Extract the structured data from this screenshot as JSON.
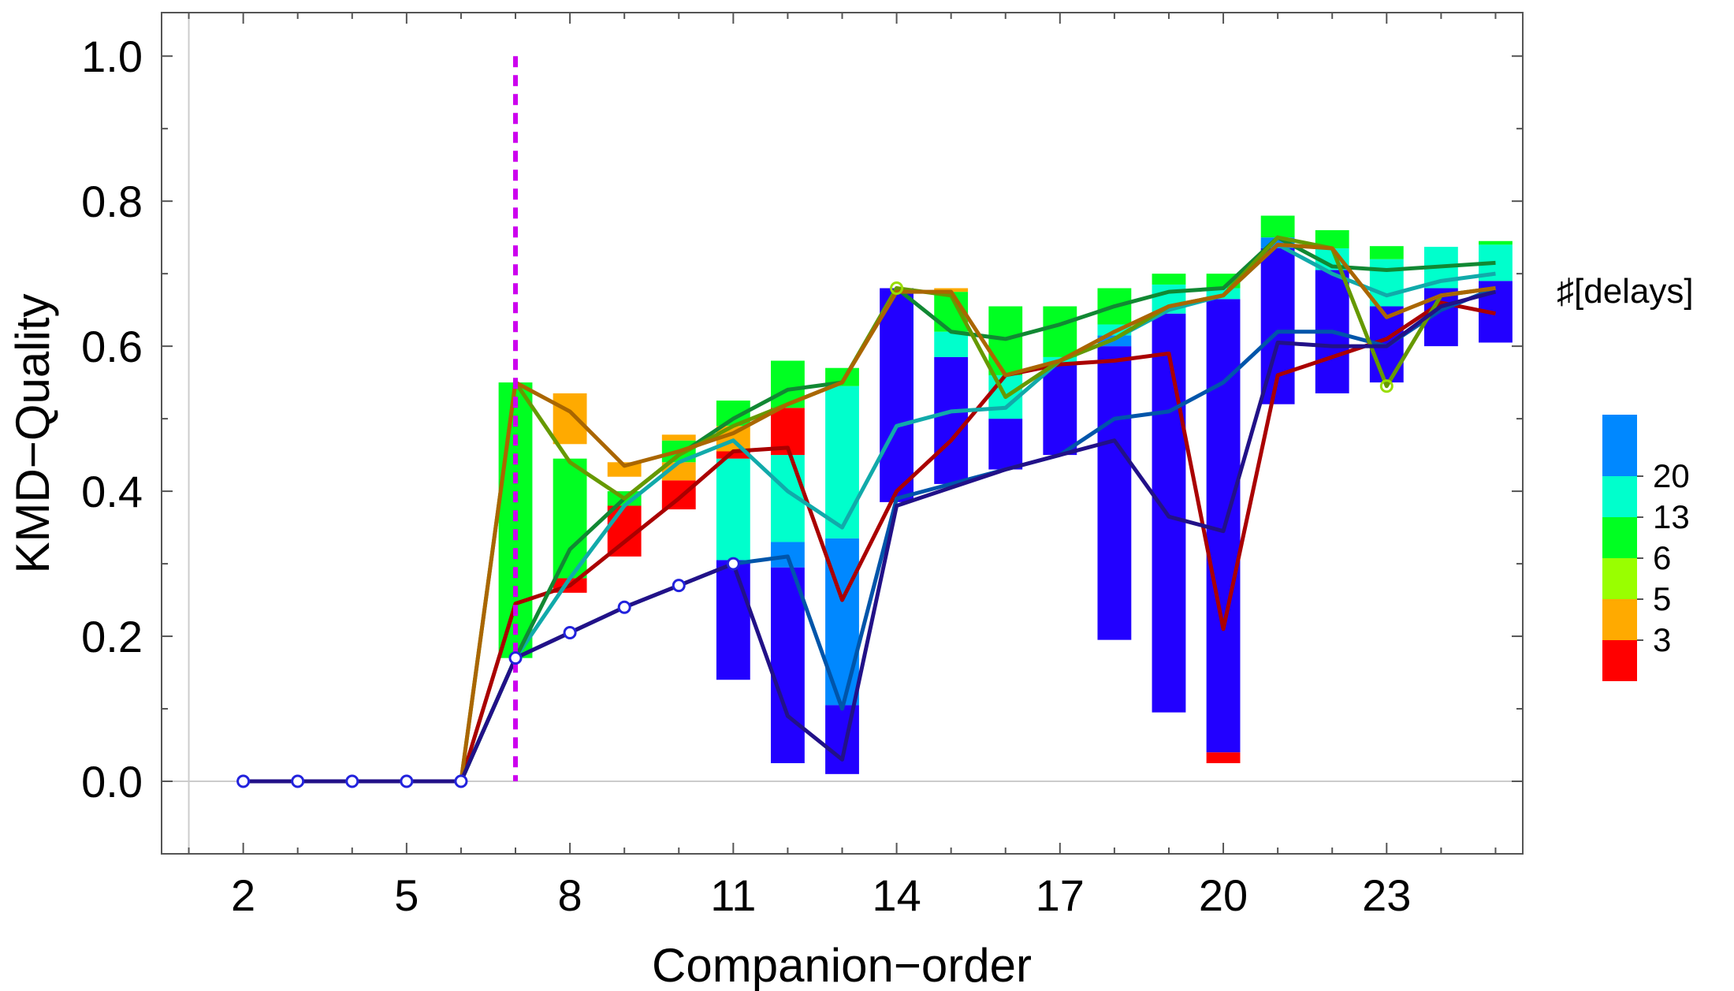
{
  "chart_data": {
    "type": "bar",
    "xlabel": "Companion−order",
    "ylabel": "KMD−Quality",
    "xlim": [
      0.5,
      25.5
    ],
    "ylim": [
      -0.1,
      1.06
    ],
    "x_ticks": [
      2,
      5,
      8,
      11,
      14,
      17,
      20,
      23
    ],
    "x_tick_labels": [
      "2",
      "5",
      "8",
      "11",
      "14",
      "17",
      "20",
      "23"
    ],
    "y_ticks": [
      0.0,
      0.2,
      0.4,
      0.6,
      0.8,
      1.0
    ],
    "y_tick_labels": [
      "0.0",
      "0.2",
      "0.4",
      "0.6",
      "0.8",
      "1.0"
    ],
    "threshold_x": 7,
    "threshold_color": "#cc00ee",
    "colorbar": {
      "title": "♯[delays]",
      "labels": [
        "3",
        "5",
        "6",
        "13",
        "20"
      ],
      "colors": [
        "#ff0000",
        "#ffaa00",
        "#99ff00",
        "#00ff22",
        "#00ffcc",
        "#0088ff"
      ]
    },
    "series": [
      {
        "color": "#aa0000",
        "x": [
          2,
          3,
          4,
          5,
          6,
          7,
          8,
          9,
          10,
          11,
          12,
          13,
          14,
          15,
          16,
          17,
          18,
          19,
          20,
          21,
          22,
          23,
          24,
          25
        ],
        "y": [
          0,
          0,
          0,
          0,
          0,
          0.245,
          0.27,
          0.33,
          0.39,
          0.455,
          0.46,
          0.25,
          0.4,
          0.47,
          0.56,
          0.575,
          0.58,
          0.59,
          0.21,
          0.56,
          0.585,
          0.61,
          0.66,
          0.645
        ]
      },
      {
        "color": "#0055aa",
        "x": [
          2,
          3,
          4,
          5,
          6,
          7,
          8,
          9,
          10,
          11,
          12,
          13,
          14,
          15,
          16,
          17,
          18,
          19,
          20,
          21,
          22,
          23,
          24,
          25
        ],
        "y": [
          0,
          0,
          0,
          0,
          0,
          0.17,
          0.205,
          0.24,
          0.27,
          0.3,
          0.31,
          0.1,
          0.39,
          0.41,
          0.43,
          0.45,
          0.5,
          0.51,
          0.55,
          0.62,
          0.62,
          0.6,
          0.65,
          0.68
        ]
      },
      {
        "color": "#11aaaa",
        "x": [
          2,
          3,
          4,
          5,
          6,
          7,
          8,
          9,
          10,
          11,
          12,
          13,
          14,
          15,
          16,
          17,
          18,
          19,
          20,
          21,
          22,
          23,
          24,
          25
        ],
        "y": [
          0,
          0,
          0,
          0,
          0,
          0.17,
          0.28,
          0.38,
          0.44,
          0.47,
          0.4,
          0.35,
          0.49,
          0.51,
          0.515,
          0.58,
          0.61,
          0.65,
          0.67,
          0.74,
          0.7,
          0.67,
          0.69,
          0.7
        ]
      },
      {
        "color": "#118833",
        "x": [
          2,
          3,
          4,
          5,
          6,
          7,
          8,
          9,
          10,
          11,
          12,
          13,
          14,
          15,
          16,
          17,
          18,
          19,
          20,
          21,
          22,
          23,
          24,
          25
        ],
        "y": [
          0,
          0,
          0,
          0,
          0,
          0.17,
          0.32,
          0.39,
          0.45,
          0.5,
          0.54,
          0.55,
          0.68,
          0.62,
          0.61,
          0.63,
          0.655,
          0.675,
          0.68,
          0.75,
          0.71,
          0.705,
          0.71,
          0.715
        ]
      },
      {
        "color": "#669900",
        "x": [
          2,
          3,
          4,
          5,
          6,
          7,
          8,
          9,
          10,
          11,
          12,
          13,
          14,
          15,
          16,
          17,
          18,
          19,
          20,
          21,
          22,
          23,
          24,
          25
        ],
        "y": [
          0,
          0,
          0,
          0,
          0,
          0.55,
          0.44,
          0.39,
          0.45,
          0.49,
          0.52,
          0.55,
          0.68,
          0.67,
          0.53,
          0.58,
          0.61,
          0.655,
          0.67,
          0.75,
          0.735,
          0.545,
          0.67,
          0.68
        ]
      },
      {
        "color": "#aa6600",
        "x": [
          2,
          3,
          4,
          5,
          6,
          7,
          8,
          9,
          10,
          11,
          12,
          13,
          14,
          15,
          16,
          17,
          18,
          19,
          20,
          21,
          22,
          23,
          24,
          25
        ],
        "y": [
          0,
          0,
          0,
          0,
          0,
          0.55,
          0.51,
          0.435,
          0.455,
          0.48,
          0.52,
          0.55,
          0.675,
          0.675,
          0.56,
          0.58,
          0.62,
          0.655,
          0.67,
          0.74,
          0.735,
          0.64,
          0.67,
          0.68
        ]
      },
      {
        "color": "#221188",
        "x": [
          2,
          3,
          4,
          5,
          6,
          7,
          8,
          9,
          10,
          11,
          12,
          13,
          14,
          15,
          16,
          17,
          18,
          19,
          20,
          21,
          22,
          23,
          24,
          25
        ],
        "y": [
          0,
          0,
          0,
          0,
          0,
          0.17,
          0.205,
          0.24,
          0.27,
          0.3,
          0.09,
          0.03,
          0.38,
          0.405,
          0.43,
          0.45,
          0.47,
          0.365,
          0.345,
          0.605,
          0.6,
          0.6,
          0.655,
          0.675
        ]
      }
    ],
    "marker_points": {
      "color": "#2222dd",
      "x": [
        2,
        3,
        4,
        5,
        6,
        7,
        8,
        9,
        10,
        11
      ],
      "y": [
        0,
        0,
        0,
        0,
        0,
        0.17,
        0.205,
        0.24,
        0.27,
        0.3
      ]
    },
    "extra_markers": [
      {
        "x": 14,
        "y": 0.68,
        "color": "#99dd00"
      },
      {
        "x": 23,
        "y": 0.545,
        "color": "#99dd00"
      }
    ],
    "bars": [
      {
        "x": 7,
        "segments": [
          {
            "from": 0.17,
            "to": 0.55,
            "color": "#00ff22"
          }
        ]
      },
      {
        "x": 8,
        "segments": [
          {
            "from": 0.26,
            "to": 0.28,
            "color": "#ff0000"
          },
          {
            "from": 0.28,
            "to": 0.445,
            "color": "#00ff22"
          },
          {
            "from": 0.465,
            "to": 0.535,
            "color": "#ffaa00"
          }
        ]
      },
      {
        "x": 9,
        "segments": [
          {
            "from": 0.31,
            "to": 0.38,
            "color": "#ff0000"
          },
          {
            "from": 0.38,
            "to": 0.4,
            "color": "#00ff22"
          },
          {
            "from": 0.42,
            "to": 0.44,
            "color": "#ffaa00"
          }
        ]
      },
      {
        "x": 10,
        "segments": [
          {
            "from": 0.375,
            "to": 0.415,
            "color": "#ff0000"
          },
          {
            "from": 0.415,
            "to": 0.44,
            "color": "#ffaa00"
          },
          {
            "from": 0.44,
            "to": 0.47,
            "color": "#00ff22"
          },
          {
            "from": 0.47,
            "to": 0.478,
            "color": "#ffaa00"
          }
        ]
      },
      {
        "x": 11,
        "segments": [
          {
            "from": 0.14,
            "to": 0.305,
            "color": "#2200ff"
          },
          {
            "from": 0.305,
            "to": 0.445,
            "color": "#00ffcc"
          },
          {
            "from": 0.445,
            "to": 0.455,
            "color": "#ff0000"
          },
          {
            "from": 0.455,
            "to": 0.49,
            "color": "#ffaa00"
          },
          {
            "from": 0.49,
            "to": 0.525,
            "color": "#00ff22"
          }
        ]
      },
      {
        "x": 12,
        "segments": [
          {
            "from": 0.025,
            "to": 0.295,
            "color": "#2200ff"
          },
          {
            "from": 0.295,
            "to": 0.33,
            "color": "#0088ff"
          },
          {
            "from": 0.33,
            "to": 0.45,
            "color": "#00ffcc"
          },
          {
            "from": 0.45,
            "to": 0.515,
            "color": "#ff0000"
          },
          {
            "from": 0.515,
            "to": 0.58,
            "color": "#00ff22"
          }
        ]
      },
      {
        "x": 13,
        "segments": [
          {
            "from": 0.01,
            "to": 0.105,
            "color": "#2200ff"
          },
          {
            "from": 0.105,
            "to": 0.335,
            "color": "#0088ff"
          },
          {
            "from": 0.335,
            "to": 0.545,
            "color": "#00ffcc"
          },
          {
            "from": 0.545,
            "to": 0.57,
            "color": "#00ff22"
          }
        ]
      },
      {
        "x": 14,
        "segments": [
          {
            "from": 0.385,
            "to": 0.68,
            "color": "#2200ff"
          }
        ]
      },
      {
        "x": 15,
        "segments": [
          {
            "from": 0.41,
            "to": 0.585,
            "color": "#2200ff"
          },
          {
            "from": 0.585,
            "to": 0.62,
            "color": "#00ffcc"
          },
          {
            "from": 0.62,
            "to": 0.675,
            "color": "#00ff22"
          },
          {
            "from": 0.675,
            "to": 0.68,
            "color": "#ffaa00"
          }
        ]
      },
      {
        "x": 16,
        "segments": [
          {
            "from": 0.43,
            "to": 0.5,
            "color": "#2200ff"
          },
          {
            "from": 0.5,
            "to": 0.56,
            "color": "#00ffcc"
          },
          {
            "from": 0.56,
            "to": 0.655,
            "color": "#00ff22"
          }
        ]
      },
      {
        "x": 17,
        "segments": [
          {
            "from": 0.45,
            "to": 0.575,
            "color": "#2200ff"
          },
          {
            "from": 0.575,
            "to": 0.585,
            "color": "#00ffcc"
          },
          {
            "from": 0.585,
            "to": 0.655,
            "color": "#00ff22"
          }
        ]
      },
      {
        "x": 18,
        "segments": [
          {
            "from": 0.195,
            "to": 0.6,
            "color": "#2200ff"
          },
          {
            "from": 0.6,
            "to": 0.615,
            "color": "#0088ff"
          },
          {
            "from": 0.615,
            "to": 0.63,
            "color": "#00ffcc"
          },
          {
            "from": 0.63,
            "to": 0.68,
            "color": "#00ff22"
          }
        ]
      },
      {
        "x": 19,
        "segments": [
          {
            "from": 0.095,
            "to": 0.645,
            "color": "#2200ff"
          },
          {
            "from": 0.645,
            "to": 0.685,
            "color": "#00ffcc"
          },
          {
            "from": 0.685,
            "to": 0.7,
            "color": "#00ff22"
          }
        ]
      },
      {
        "x": 20,
        "segments": [
          {
            "from": 0.025,
            "to": 0.04,
            "color": "#ff0000"
          },
          {
            "from": 0.04,
            "to": 0.665,
            "color": "#2200ff"
          },
          {
            "from": 0.665,
            "to": 0.68,
            "color": "#00ffcc"
          },
          {
            "from": 0.68,
            "to": 0.7,
            "color": "#00ff22"
          }
        ]
      },
      {
        "x": 21,
        "segments": [
          {
            "from": 0.52,
            "to": 0.735,
            "color": "#2200ff"
          },
          {
            "from": 0.735,
            "to": 0.75,
            "color": "#0088ff"
          },
          {
            "from": 0.75,
            "to": 0.78,
            "color": "#00ff22"
          }
        ]
      },
      {
        "x": 22,
        "segments": [
          {
            "from": 0.535,
            "to": 0.705,
            "color": "#2200ff"
          },
          {
            "from": 0.705,
            "to": 0.735,
            "color": "#00ffcc"
          },
          {
            "from": 0.735,
            "to": 0.76,
            "color": "#00ff22"
          }
        ]
      },
      {
        "x": 23,
        "segments": [
          {
            "from": 0.55,
            "to": 0.655,
            "color": "#2200ff"
          },
          {
            "from": 0.655,
            "to": 0.72,
            "color": "#00ffcc"
          },
          {
            "from": 0.72,
            "to": 0.738,
            "color": "#00ff22"
          }
        ]
      },
      {
        "x": 24,
        "segments": [
          {
            "from": 0.6,
            "to": 0.68,
            "color": "#2200ff"
          },
          {
            "from": 0.68,
            "to": 0.737,
            "color": "#00ffcc"
          }
        ]
      },
      {
        "x": 25,
        "segments": [
          {
            "from": 0.605,
            "to": 0.69,
            "color": "#2200ff"
          },
          {
            "from": 0.69,
            "to": 0.74,
            "color": "#00ffcc"
          },
          {
            "from": 0.74,
            "to": 0.745,
            "color": "#00ff22"
          }
        ]
      }
    ]
  }
}
